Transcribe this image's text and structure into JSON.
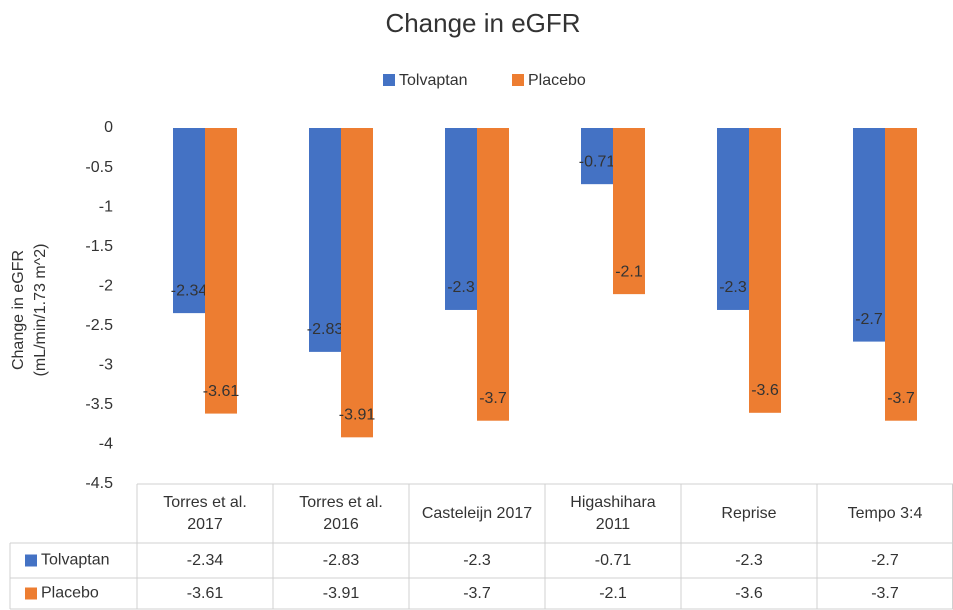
{
  "chart_data": {
    "type": "bar",
    "title": "Change in eGFR",
    "y_label": "Change in eGFR (mL/min/1.73 m^2)",
    "categories": [
      "Torres et al. 2017",
      "Torres et al. 2016",
      "Casteleijn 2017",
      "Higashihara 2011",
      "Reprise",
      "Tempo 3:4"
    ],
    "series": [
      {
        "name": "Tolvaptan",
        "color": "#4472c4",
        "values": [
          -2.34,
          -2.83,
          -2.3,
          -0.71,
          -2.3,
          -2.7
        ]
      },
      {
        "name": "Placebo",
        "color": "#ed7d31",
        "values": [
          -3.61,
          -3.91,
          -3.7,
          -2.1,
          -3.6,
          -3.7
        ]
      }
    ],
    "ylim": [
      -4.5,
      0
    ],
    "yticks": [
      0,
      -0.5,
      -1,
      -1.5,
      -2,
      -2.5,
      -3,
      -3.5,
      -4,
      -4.5
    ],
    "grid": false,
    "legend": "top",
    "data_table": true
  }
}
